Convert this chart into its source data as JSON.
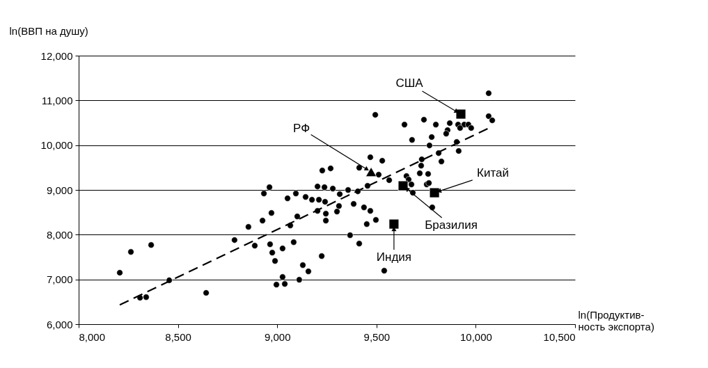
{
  "chart_data": {
    "type": "scatter",
    "xlabel": "ln(Продуктив-\nность экспорта)",
    "ylabel": "ln(ВВП на душу)",
    "xlim": [
      8000,
      10500
    ],
    "ylim": [
      6000,
      12000
    ],
    "xticks": [
      {
        "value": 8000,
        "label": "8,000"
      },
      {
        "value": 8500,
        "label": "8,500"
      },
      {
        "value": 9000,
        "label": "9,000"
      },
      {
        "value": 9500,
        "label": "9,500"
      },
      {
        "value": 10000,
        "label": "10,000"
      },
      {
        "value": 10500,
        "label": "10,500"
      }
    ],
    "yticks": [
      {
        "value": 6000,
        "label": "6,000"
      },
      {
        "value": 7000,
        "label": "7,000"
      },
      {
        "value": 8000,
        "label": "8,000"
      },
      {
        "value": 9000,
        "label": "9,000"
      },
      {
        "value": 10000,
        "label": "10,000"
      },
      {
        "value": 11000,
        "label": "11,000"
      },
      {
        "value": 12000,
        "label": "12,000"
      }
    ],
    "grid": "y",
    "series": [
      {
        "marker": "circle",
        "color": "#000000",
        "x": [
          8207,
          8263,
          8365,
          8309,
          8340,
          8456,
          8642,
          8785,
          8855,
          8887,
          9494,
          9641,
          9469,
          9529,
          9413,
          9227,
          9269,
          9511,
          9564,
          8961,
          8933,
          9094,
          9203,
          9238,
          9280,
          9357,
          9406,
          9455,
          9315,
          9052,
          9143,
          9175,
          9210,
          9241,
          9311,
          9385,
          9437,
          9469,
          8971,
          9203,
          9245,
          9301,
          9101,
          8926,
          9245,
          9497,
          9451,
          9066,
          9367,
          9413,
          8964,
          9083,
          8975,
          9027,
          8989,
          9224,
          9129,
          9157,
          9539,
          9027,
          8996,
          9038,
          9111,
          10065,
          10065,
          10083,
          9739,
          9799,
          9869,
          9911,
          9942,
          9963,
          9977,
          9921,
          9858,
          9851,
          9679,
          9778,
          9767,
          9904,
          9914,
          9813,
          9728,
          9827,
          9725,
          9718,
          9760,
          9651,
          9662,
          9676,
          9683,
          9753,
          9764,
          9781
        ],
        "values": [
          7150,
          7615,
          7770,
          6590,
          6605,
          6980,
          6700,
          7880,
          8175,
          7755,
          10678,
          10460,
          9730,
          9652,
          9496,
          9434,
          9481,
          9341,
          9217,
          9061,
          8921,
          8921,
          9077,
          9061,
          9030,
          8999,
          8968,
          9092,
          8906,
          8812,
          8843,
          8781,
          8781,
          8735,
          8641,
          8688,
          8610,
          8532,
          8486,
          8532,
          8470,
          8517,
          8408,
          8315,
          8315,
          8330,
          8237,
          8206,
          7988,
          7801,
          7786,
          7833,
          7599,
          7693,
          7413,
          7522,
          7320,
          7180,
          7195,
          7055,
          6884,
          6900,
          6993,
          11160,
          10647,
          10554,
          10569,
          10460,
          10492,
          10460,
          10460,
          10460,
          10383,
          10383,
          10336,
          10258,
          10118,
          10181,
          9994,
          10072,
          9870,
          9823,
          9683,
          9636,
          9543,
          9372,
          9357,
          9310,
          9232,
          9123,
          8937,
          9123,
          9154,
          8610
        ]
      },
      {
        "marker": "square",
        "color": "#000000",
        "x": [
          9925,
          9634,
          9792,
          9588
        ],
        "values": [
          10694,
          9092,
          8937,
          8237
        ]
      },
      {
        "marker": "triangle",
        "color": "#000000",
        "x": [
          9473
        ],
        "values": [
          9403
        ]
      },
      {
        "type": "line",
        "line_style": "dashed",
        "color": "#000000",
        "x": [
          8207,
          10065
        ],
        "values": [
          6430,
          10380
        ]
      }
    ],
    "annotations": [
      {
        "text": "США",
        "x": 9925,
        "y": 10694
      },
      {
        "text": "РФ",
        "x": 9473,
        "y": 9403
      },
      {
        "text": "Китай",
        "x": 9792,
        "y": 8937
      },
      {
        "text": "Бразилия",
        "x": 9634,
        "y": 9092
      },
      {
        "text": "Индия",
        "x": 9588,
        "y": 8237
      }
    ]
  }
}
